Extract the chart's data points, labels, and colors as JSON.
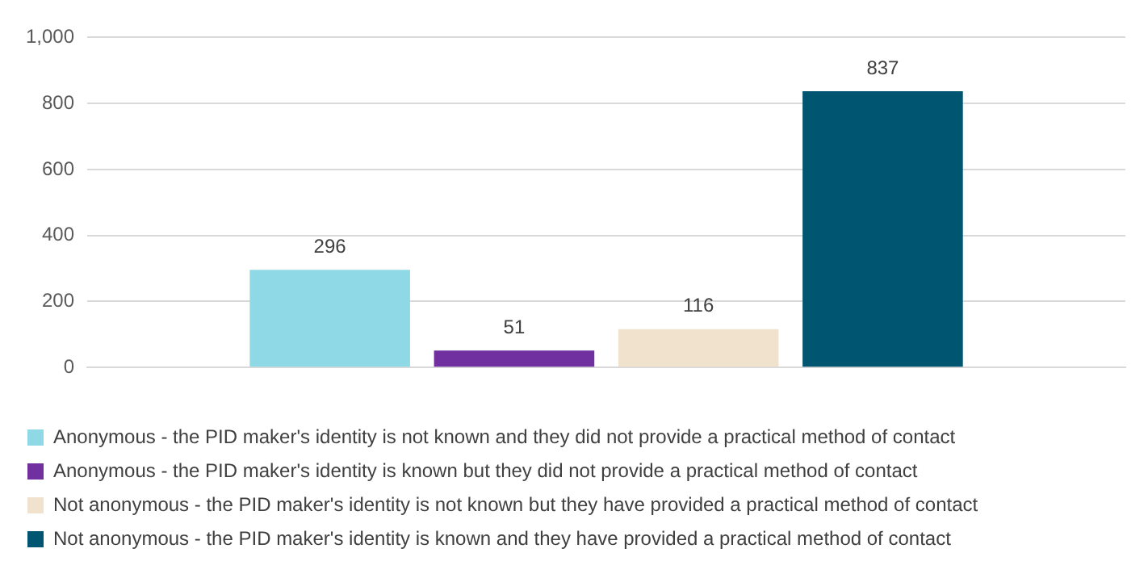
{
  "chart_data": {
    "type": "bar",
    "categories": [
      null
    ],
    "series": [
      {
        "name": "Anonymous - the PID maker's identity is not known and they did not provide a practical method of contact",
        "color": "#8fd9e6",
        "values": [
          296
        ]
      },
      {
        "name": "Anonymous - the PID maker's identity is known but they did not provide a practical method of contact",
        "color": "#7030a0",
        "values": [
          51
        ]
      },
      {
        "name": "Not anonymous - the PID maker's identity is not known but they have provided a practical method of contact",
        "color": "#f0e2cc",
        "values": [
          116
        ]
      },
      {
        "name": "Not anonymous - the PID maker's identity is known and they have provided a practical method of contact",
        "color": "#005570",
        "values": [
          837
        ]
      }
    ],
    "ylim": [
      0,
      1000
    ],
    "yticks": [
      0,
      200,
      400,
      600,
      800,
      {
        "value": 1000,
        "label": "1,000"
      }
    ],
    "grid": "y",
    "legend": "bottom",
    "data_labels": true
  }
}
